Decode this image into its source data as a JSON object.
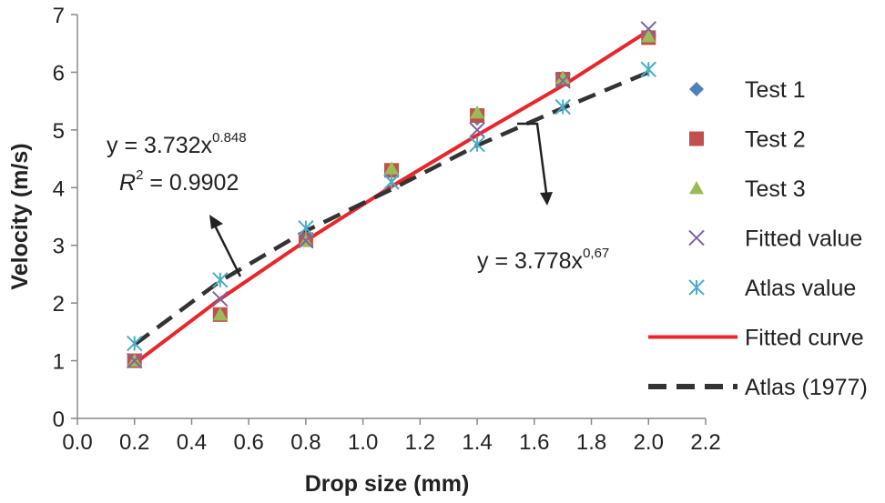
{
  "chart_data": {
    "type": "scatter",
    "xlabel": "Drop size (mm)",
    "ylabel": "Velocity (m/s)",
    "xlim": [
      0.0,
      2.2
    ],
    "ylim": [
      0,
      7
    ],
    "xticks": [
      "0.0",
      "0.2",
      "0.4",
      "0.6",
      "0.8",
      "1.0",
      "1.2",
      "1.4",
      "1.6",
      "1.8",
      "2.0",
      "2.2"
    ],
    "yticks": [
      "0",
      "1",
      "2",
      "3",
      "4",
      "5",
      "6",
      "7"
    ],
    "grid": false,
    "legend_position": "right",
    "x": [
      0.2,
      0.5,
      0.8,
      1.1,
      1.4,
      1.7,
      2.0
    ],
    "series": [
      {
        "name": "Test 1",
        "marker": "diamond",
        "color": "#4f81bd",
        "values": [
          1.0,
          1.8,
          3.1,
          4.3,
          5.2,
          5.9,
          6.6
        ]
      },
      {
        "name": "Test 2",
        "marker": "square",
        "color": "#c0504d",
        "values": [
          1.0,
          1.8,
          3.1,
          4.3,
          5.25,
          5.88,
          6.6
        ]
      },
      {
        "name": "Test 3",
        "marker": "triangle",
        "color": "#9bbb59",
        "values": [
          1.0,
          1.8,
          3.07,
          4.33,
          5.3,
          5.9,
          6.62
        ]
      },
      {
        "name": "Fitted value",
        "marker": "x",
        "color": "#8064a2",
        "values": [
          1.0,
          2.07,
          3.08,
          4.1,
          5.0,
          5.85,
          6.75
        ]
      },
      {
        "name": "Atlas value",
        "marker": "asterisk",
        "color": "#4bacc6",
        "values": [
          1.3,
          2.4,
          3.3,
          4.1,
          4.75,
          5.4,
          6.05
        ]
      },
      {
        "name": "Fitted curve",
        "line": "solid",
        "color": "#e8262b",
        "values": [
          0.95,
          2.07,
          3.08,
          4.02,
          4.91,
          5.77,
          6.72
        ]
      },
      {
        "name": "Atlas (1977)",
        "line": "dashed",
        "color": "#333333",
        "values": [
          1.28,
          2.38,
          3.25,
          3.97,
          4.73,
          5.38,
          6.0
        ]
      }
    ],
    "annotations": [
      {
        "base": "y = 3.732x",
        "exponent": "0.848"
      },
      {
        "r2_base": "R",
        "r2_exp": "2",
        "r2_value": " = 0.9902"
      },
      {
        "base": "y = 3.778x",
        "exponent": "0,67"
      }
    ]
  }
}
